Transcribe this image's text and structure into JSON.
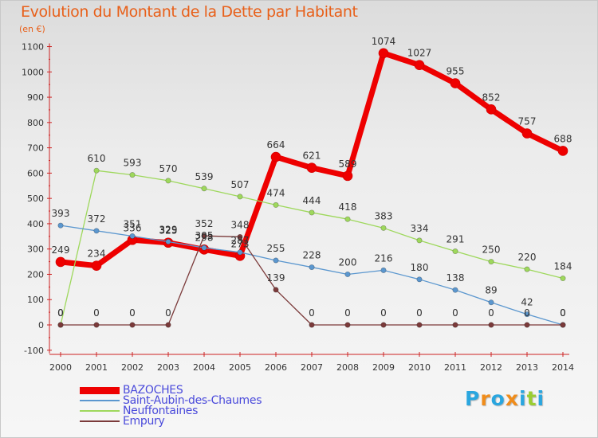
{
  "chart_data": {
    "type": "line",
    "title": "Evolution du Montant de la Dette par Habitant",
    "subtitle": "(en €)",
    "xlabel": "",
    "ylabel": "",
    "x": [
      "2000",
      "2001",
      "2002",
      "2003",
      "2004",
      "2005",
      "2006",
      "2007",
      "2008",
      "2009",
      "2010",
      "2011",
      "2012",
      "2013",
      "2014"
    ],
    "ylim": [
      -100,
      1100
    ],
    "yticks": [
      "-100",
      "0",
      "100",
      "200",
      "300",
      "400",
      "500",
      "600",
      "700",
      "800",
      "900",
      "1000",
      "1100"
    ],
    "grid": false,
    "legend_position": "bottom-left",
    "series": [
      {
        "name": "BAZOCHES",
        "color": "#ee0000",
        "values": [
          249,
          234,
          336,
          325,
          298,
          273,
          664,
          621,
          589,
          1074,
          1027,
          955,
          852,
          757,
          688
        ],
        "labels": [
          "249",
          "234",
          "336",
          "325",
          "298",
          "273",
          "664",
          "621",
          "589",
          "1074",
          "1027",
          "955",
          "852",
          "757",
          "688"
        ]
      },
      {
        "name": "Saint-Aubin-des-Chaumes",
        "color": "#5b97cf",
        "values": [
          393,
          372,
          351,
          329,
          305,
          287,
          255,
          228,
          200,
          216,
          180,
          138,
          89,
          42,
          0
        ],
        "labels": [
          "393",
          "372",
          "351",
          "329",
          "305",
          "287",
          "255",
          "228",
          "200",
          "216",
          "180",
          "138",
          "89",
          "42",
          "0"
        ]
      },
      {
        "name": "Neuffontaines",
        "color": "#9ed85c",
        "values": [
          0,
          610,
          593,
          570,
          539,
          507,
          474,
          444,
          418,
          383,
          334,
          291,
          250,
          220,
          184
        ],
        "labels": [
          "0",
          "610",
          "593",
          "570",
          "539",
          "507",
          "474",
          "444",
          "418",
          "383",
          "334",
          "291",
          "250",
          "220",
          "184"
        ]
      },
      {
        "name": "Empury",
        "color": "#7b3a3a",
        "values": [
          0,
          0,
          0,
          0,
          352,
          348,
          139,
          0,
          0,
          0,
          0,
          0,
          0,
          0,
          0
        ],
        "labels": [
          "0",
          "0",
          "0",
          "0",
          "352",
          "348",
          "139",
          "0",
          "0",
          "0",
          "0",
          "0",
          "0",
          "0",
          "0"
        ]
      }
    ]
  },
  "logo": {
    "letters": [
      "P",
      "r",
      "o",
      "x",
      "i",
      "t",
      "i"
    ],
    "colors": [
      "#2aa6df",
      "#f08c1a",
      "#2aa6df",
      "#f08c1a",
      "#2aa6df",
      "#9acd32",
      "#2aa6df"
    ]
  }
}
